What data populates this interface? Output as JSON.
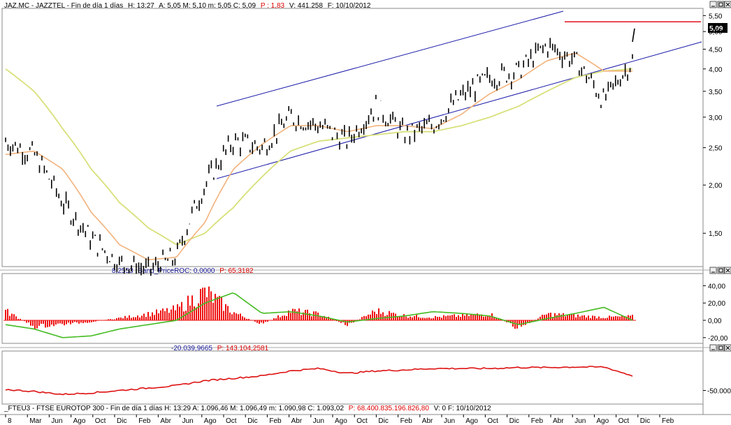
{
  "main_panel": {
    "title_name": "JAZ.MC - JAZZTEL - Fin de día 1 días",
    "title_time": "H: 13:27",
    "title_ohlc": "A: 5,05  M: 5,10  m: 5,05  C: 5,09",
    "title_p": "P : 1,83",
    "title_v": "V: 441.258",
    "title_date": "F: 10/10/2012",
    "last_price_tag": "5,09",
    "y_ticks": [
      "5,50",
      "5,00",
      "4,50",
      "4,00",
      "3,50",
      "3,00",
      "2,50",
      "2,00",
      "1,50"
    ]
  },
  "roc_panel": {
    "title_value": "8,2553",
    "title_name": "Band_PriceROC: 0,0000",
    "title_p": "P: 65,3182",
    "y_ticks": [
      "40,00",
      "20,00",
      "0,00",
      "-20,00"
    ]
  },
  "ftse_panel": {
    "title_value": "-20.039,9665",
    "title_p": "P: 143.104,2581",
    "y_ticks": [
      "-50.000"
    ],
    "footer": "_FTEU3 - FTSE EUROTOP 300 - Fin de día 1 días  H: 13:29  A: 1.096,46  M: 1.096,49  m: 1.090,98  C: 1.093,02",
    "footer_p": "P: 68.400.835.196.826,80",
    "footer_tail": "V: 0  F: 10/10/2012"
  },
  "x_axis": {
    "labels": [
      "8",
      "Mar",
      "Jun",
      "Ago",
      "Oct",
      "Dic",
      "Feb",
      "Abr",
      "Jun",
      "Ago",
      "Oct",
      "Dic",
      "Feb",
      "Abr",
      "Jun",
      "Ago",
      "Oct",
      "Dic",
      "Feb",
      "Abr",
      "Jun",
      "Ago",
      "Oct",
      "Dic",
      "Feb",
      "Abr",
      "Jun",
      "Ago",
      "Oct",
      "Dic",
      "Feb"
    ]
  },
  "colors": {
    "price": "#000000",
    "ma_short": "#f2b27c",
    "ma_long": "#d8e07a",
    "channel": "#1a1aa8",
    "resistance": "#e01020",
    "roc_hist": "#ee1111",
    "roc_line": "#44bb22",
    "ftse_line": "#dd1111",
    "title_blue": "#1a1a9a",
    "title_red": "#dd0000"
  },
  "chart_data": [
    {
      "type": "line",
      "name": "JAZ.MC - JAZZTEL daily price",
      "x": [
        "Feb",
        "Mar",
        "Jun",
        "Ago",
        "Oct",
        "Dic",
        "Feb",
        "Abr",
        "Jun",
        "Ago",
        "Oct",
        "Dic",
        "Feb",
        "Abr",
        "Jun",
        "Ago",
        "Oct",
        "Dic",
        "Feb",
        "Abr",
        "Jun",
        "Ago",
        "Oct"
      ],
      "series": [
        {
          "values": [
            2.6,
            2.4,
            1.8,
            1.45,
            1.25,
            1.2,
            1.3,
            2.0,
            2.6,
            2.5,
            3.0,
            2.85,
            2.6,
            3.2,
            2.7,
            2.85,
            3.4,
            3.8,
            3.95,
            4.6,
            4.2,
            3.3,
            4.2
          ]
        },
        {
          "values": [
            2.4,
            2.45,
            2.2,
            1.7,
            1.4,
            1.28,
            1.3,
            1.6,
            2.2,
            2.55,
            2.85,
            2.85,
            2.75,
            2.85,
            2.85,
            2.8,
            3.05,
            3.45,
            3.75,
            4.2,
            4.4,
            3.95,
            3.95
          ]
        },
        {
          "values": [
            4.0,
            3.5,
            2.8,
            2.2,
            1.8,
            1.55,
            1.4,
            1.5,
            1.75,
            2.1,
            2.45,
            2.6,
            2.65,
            2.7,
            2.75,
            2.75,
            2.85,
            3.0,
            3.2,
            3.5,
            3.8,
            3.95,
            4.0
          ]
        }
      ],
      "last_points": {
        "x": [
          "Ago",
          "Sep",
          "Oct"
        ],
        "price": [
          4.2,
          4.6,
          5.09
        ],
        "ma_short": [
          4.35,
          4.45,
          4.55
        ],
        "ma_long": [
          4.35,
          4.4,
          4.45
        ]
      },
      "resistance_level": 5.3,
      "y_scale": "log",
      "ylim": [
        1.25,
        5.6
      ],
      "grid": false
    },
    {
      "type": "bar",
      "name": "Band_PriceROC",
      "ylim": [
        -25,
        50
      ],
      "x": [
        "Feb",
        "Abr",
        "Jun",
        "Ago",
        "Oct",
        "Dic",
        "Feb",
        "Abr",
        "Jun",
        "Ago",
        "Oct",
        "Dic",
        "Feb",
        "Abr",
        "Jun",
        "Ago",
        "Oct",
        "Dic",
        "Feb",
        "Abr",
        "Jun",
        "Ago",
        "Oct"
      ],
      "series": [
        {
          "values": [
            12,
            -8,
            -5,
            -2,
            3,
            8,
            14,
            36,
            10,
            -5,
            12,
            8,
            -6,
            12,
            6,
            4,
            6,
            8,
            -10,
            8,
            6,
            4,
            5
          ]
        },
        {
          "values": [
            -5,
            -10,
            -20,
            -18,
            -10,
            -5,
            0,
            20,
            32,
            8,
            10,
            5,
            -2,
            2,
            5,
            10,
            8,
            5,
            -5,
            2,
            8,
            15,
            0
          ]
        }
      ]
    },
    {
      "type": "line",
      "name": "_FTEU3 - FTSE EUROTOP 300",
      "ylim": [
        -75000,
        25000
      ],
      "x": [
        "Feb",
        "Abr",
        "Jun",
        "Ago",
        "Oct",
        "Dic",
        "Feb",
        "Abr",
        "Jun",
        "Ago",
        "Oct",
        "Dic",
        "Feb",
        "Abr",
        "Jun",
        "Ago",
        "Oct",
        "Dic",
        "Feb",
        "Abr",
        "Jun",
        "Ago",
        "Oct"
      ],
      "values": [
        -48000,
        -52000,
        -58000,
        -55000,
        -50000,
        -45000,
        -40000,
        -30000,
        -25000,
        -20000,
        -10000,
        -5000,
        -15000,
        -10000,
        -8000,
        -5000,
        -5000,
        -5000,
        -3000,
        -3000,
        -2000,
        -2000,
        -20000
      ]
    }
  ]
}
